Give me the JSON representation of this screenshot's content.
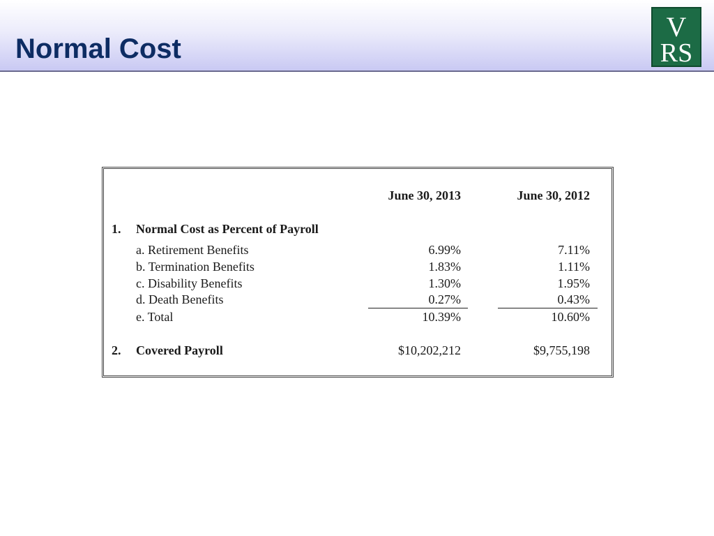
{
  "slide": {
    "title": "Normal Cost"
  },
  "logo": {
    "text_top": "V",
    "text_bottom": "RS",
    "brand_color": "#1c6b45"
  },
  "table": {
    "columns": [
      "June 30, 2013",
      "June 30, 2012"
    ],
    "section1": {
      "number": "1.",
      "label": "Normal Cost as Percent of Payroll",
      "rows": [
        {
          "label": "a. Retirement Benefits",
          "v2013": "6.99%",
          "v2012": "7.11%"
        },
        {
          "label": "b. Termination Benefits",
          "v2013": "1.83%",
          "v2012": "1.11%"
        },
        {
          "label": "c. Disability Benefits",
          "v2013": "1.30%",
          "v2012": "1.95%"
        },
        {
          "label": "d. Death Benefits",
          "v2013": "0.27%",
          "v2012": "0.43%"
        },
        {
          "label": "e. Total",
          "v2013": "10.39%",
          "v2012": "10.60%"
        }
      ]
    },
    "section2": {
      "number": "2.",
      "label": "Covered Payroll",
      "v2013": "$10,202,212",
      "v2012": "$9,755,198"
    }
  }
}
